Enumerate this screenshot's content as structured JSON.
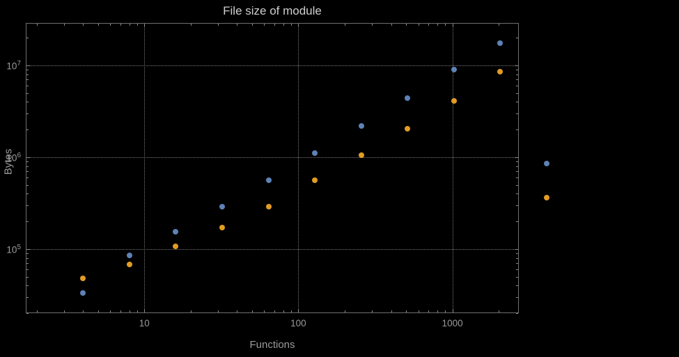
{
  "colors": {
    "background": "#000000",
    "series_blue": "#5e82b5",
    "series_orange": "#e19c24",
    "axis_text": "#9b9b9b",
    "title_text": "#cfcfcf"
  },
  "chart_data": {
    "type": "scatter",
    "title": "File size of module",
    "xlabel": "Functions",
    "ylabel": "Bytes",
    "x_scale": "log",
    "y_scale": "log",
    "grid": true,
    "legend": "none",
    "x": [
      4,
      8,
      16,
      32,
      64,
      128,
      256,
      512,
      1024,
      2048
    ],
    "series": [
      {
        "name": "blue",
        "color": "#5e82b5",
        "values": [
          33000,
          85000,
          155000,
          290000,
          560000,
          1100000,
          2200000,
          4400000,
          9000000,
          17500000
        ]
      },
      {
        "name": "orange",
        "color": "#e19c24",
        "values": [
          48000,
          68000,
          107000,
          170000,
          290000,
          560000,
          1050000,
          2050000,
          4100000,
          8500000
        ]
      }
    ],
    "outside_points": [
      {
        "series": "blue",
        "color": "#5e82b5",
        "x": 4096,
        "y": 850000
      },
      {
        "series": "orange",
        "color": "#e19c24",
        "x": 4096,
        "y": 360000
      }
    ],
    "x_ticks": [
      {
        "value": 10,
        "label": "10"
      },
      {
        "value": 100,
        "label": "100"
      },
      {
        "value": 1000,
        "label": "1000"
      }
    ],
    "y_ticks": [
      {
        "value": 100000,
        "base": "10",
        "exp": "5"
      },
      {
        "value": 1000000,
        "base": "10",
        "exp": "6"
      },
      {
        "value": 10000000,
        "base": "10",
        "exp": "7"
      }
    ],
    "xlim": [
      1.7,
      2700
    ],
    "ylim": [
      20000,
      29000000
    ]
  }
}
